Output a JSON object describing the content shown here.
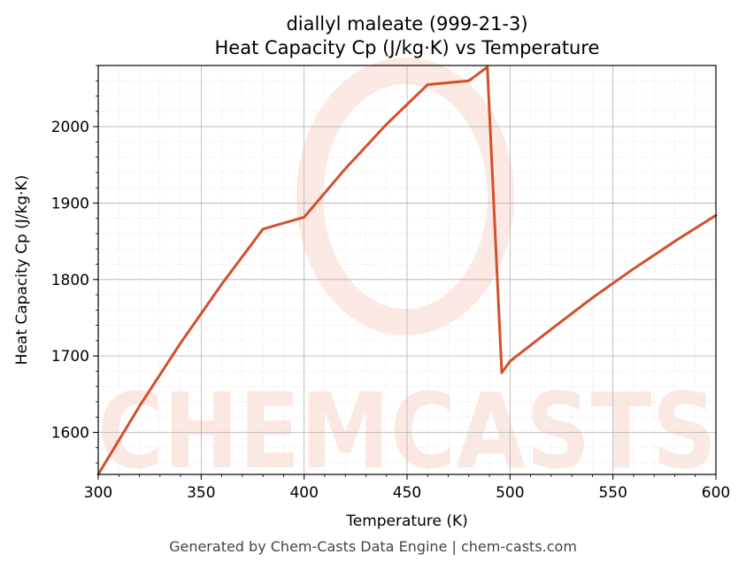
{
  "chart_data": {
    "type": "line",
    "title": "diallyl maleate (999-21-3)",
    "subtitle": "Heat Capacity Cp (J/kg·K) vs Temperature",
    "xlabel": "Temperature (K)",
    "ylabel": "Heat Capacity Cp (J/kg·K)",
    "xlim": [
      300,
      600
    ],
    "ylim": [
      1545,
      2080
    ],
    "xticks": [
      300,
      350,
      400,
      450,
      500,
      550,
      600
    ],
    "yticks": [
      1600,
      1700,
      1800,
      1900,
      2000
    ],
    "grid": true,
    "series": [
      {
        "color": "#d4502a",
        "x": [
          300,
          320,
          340,
          360,
          380,
          400,
          420,
          440,
          460,
          480,
          489,
          496,
          500,
          520,
          540,
          560,
          580,
          600
        ],
        "y": [
          1545,
          1634,
          1717,
          1794,
          1866,
          1881.5,
          1945,
          2003,
          2055,
          2060,
          2078,
          1678,
          1693,
          1735,
          1776,
          1814,
          1850,
          1884
        ]
      }
    ]
  },
  "watermark": "CHEMCASTS",
  "footer": "Generated by Chem-Casts Data Engine | chem-casts.com"
}
